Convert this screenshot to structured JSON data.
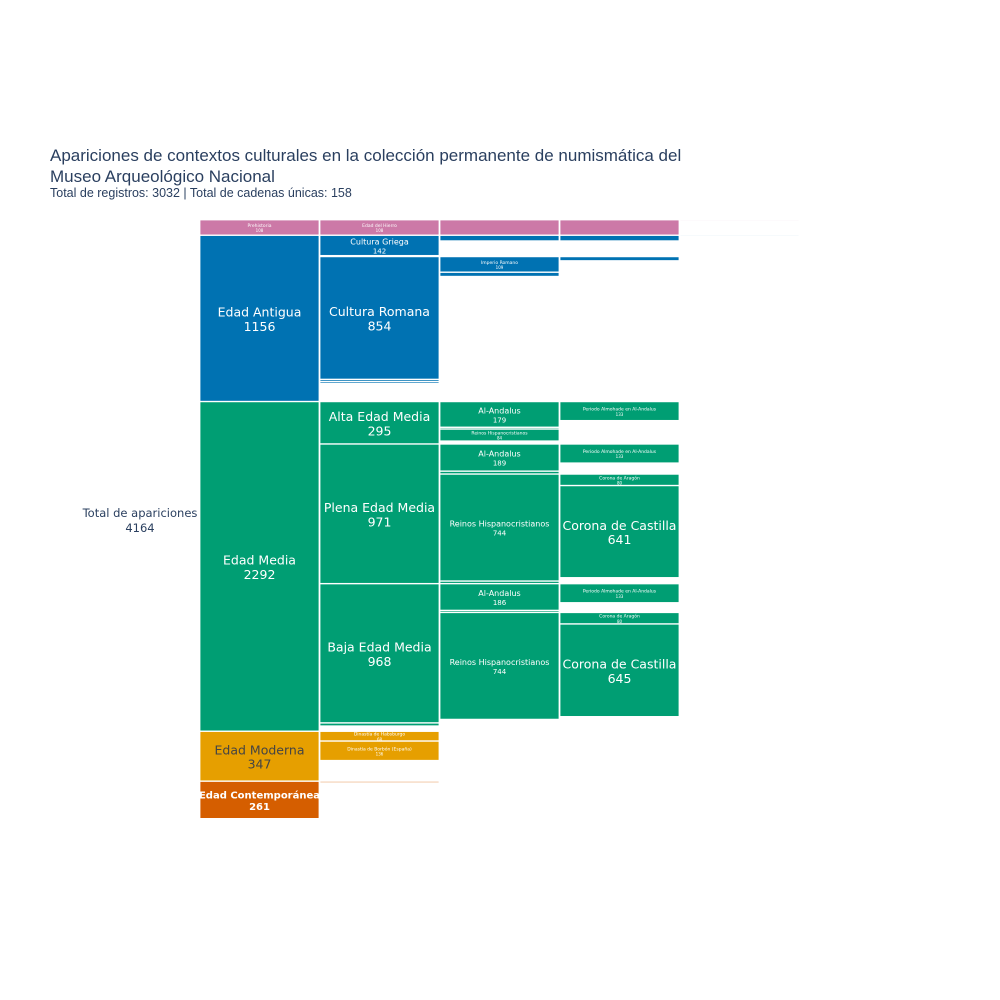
{
  "chart_data": {
    "type": "icicle",
    "title": "Apariciones de contextos culturales en la colección permanente de numismática del",
    "title_line2": "Museo Arqueológico Nacional",
    "subtitle": "Total de registros: 3032 | Total de cadenas únicas: 158",
    "root": {
      "label": "Total de apariciones",
      "value": 4164
    },
    "colors": {
      "prehistoria": "#cc79a7",
      "antigua": "#0072b2",
      "media": "#009e73",
      "moderna": "#e69f00",
      "contemporanea": "#d55e00"
    },
    "nodes": [
      {
        "id": "pre",
        "parent": "root",
        "label": "Prehistoria",
        "value": 108,
        "color": "prehistoria",
        "label_size": "tiny"
      },
      {
        "id": "ant",
        "parent": "root",
        "label": "Edad Antigua",
        "value": 1156,
        "color": "antigua",
        "label_size": "large"
      },
      {
        "id": "med",
        "parent": "root",
        "label": "Edad Media",
        "value": 2292,
        "color": "media",
        "label_size": "large"
      },
      {
        "id": "mod",
        "parent": "root",
        "label": "Edad Moderna",
        "value": 347,
        "color": "moderna",
        "label_size": "large",
        "text_color": "#444444"
      },
      {
        "id": "con",
        "parent": "root",
        "label": "Edad Contemporánea",
        "value": 261,
        "color": "contemporanea",
        "label_size": "medium",
        "bold": true
      },
      {
        "id": "pre-h",
        "parent": "pre",
        "label": "Edad del Hierro",
        "value": 108,
        "color": "prehistoria",
        "label_size": "tiny"
      },
      {
        "id": "pre-h-c",
        "parent": "pre-h",
        "label": "",
        "value": 108,
        "color": "prehistoria"
      },
      {
        "id": "pre-h-c-c",
        "parent": "pre-h-c",
        "label": "",
        "value": 108,
        "color": "prehistoria"
      },
      {
        "id": "pre-h-c-c-c",
        "parent": "pre-h-c-c",
        "label": "",
        "value": 10,
        "color": "prehistoria"
      },
      {
        "id": "ant-g",
        "parent": "ant",
        "label": "Cultura Griega",
        "value": 142,
        "color": "antigua",
        "label_size": "small"
      },
      {
        "id": "ant-g-a",
        "parent": "ant-g",
        "label": "",
        "value": 40,
        "color": "antigua"
      },
      {
        "id": "ant-g-a-a",
        "parent": "ant-g-a",
        "label": "",
        "value": 40,
        "color": "antigua"
      },
      {
        "id": "ant-g-a-a-a",
        "parent": "ant-g-a-a",
        "label": "",
        "value": 10,
        "color": "antigua"
      },
      {
        "id": "ant-gap1",
        "parent": "ant",
        "label": "",
        "value": 6,
        "color": "antigua"
      },
      {
        "id": "ant-r",
        "parent": "ant",
        "label": "Cultura Romana",
        "value": 854,
        "color": "antigua",
        "label_size": "large"
      },
      {
        "id": "ant-r-i",
        "parent": "ant-r",
        "label": "Imperio Romano",
        "value": 109,
        "color": "antigua",
        "label_size": "tiny"
      },
      {
        "id": "ant-r-i-x",
        "parent": "ant-r-i",
        "label": "",
        "value": 30,
        "color": "antigua"
      },
      {
        "id": "ant-r-x",
        "parent": "ant-r",
        "label": "",
        "value": 30,
        "color": "antigua"
      },
      {
        "id": "ant-o1",
        "parent": "ant",
        "label": "",
        "value": 15,
        "color": "antigua"
      },
      {
        "id": "ant-o2",
        "parent": "ant",
        "label": "",
        "value": 14,
        "color": "antigua"
      },
      {
        "id": "alta",
        "parent": "med",
        "label": "Alta Edad Media",
        "value": 295,
        "color": "media",
        "label_size": "large"
      },
      {
        "id": "alta-a",
        "parent": "alta",
        "label": "Al-Andalus",
        "value": 179,
        "color": "media",
        "label_size": "small"
      },
      {
        "id": "alta-a-p",
        "parent": "alta-a",
        "label": "Periodo Almohade en Al-Andalus",
        "value": 133,
        "color": "media",
        "label_size": "tiny"
      },
      {
        "id": "alta-x",
        "parent": "alta",
        "label": "",
        "value": 12,
        "color": "media"
      },
      {
        "id": "alta-r",
        "parent": "alta",
        "label": "Reinos Hispanocristianos",
        "value": 84,
        "color": "media",
        "label_size": "tiny"
      },
      {
        "id": "plena",
        "parent": "med",
        "label": "Plena Edad Media",
        "value": 971,
        "color": "media",
        "label_size": "large"
      },
      {
        "id": "plena-a",
        "parent": "plena",
        "label": "Al-Andalus",
        "value": 189,
        "color": "media",
        "label_size": "small"
      },
      {
        "id": "plena-a-p",
        "parent": "plena-a",
        "label": "Periodo Almohade en Al-Andalus",
        "value": 133,
        "color": "media",
        "label_size": "tiny"
      },
      {
        "id": "plena-x",
        "parent": "plena",
        "label": "",
        "value": 20,
        "color": "media"
      },
      {
        "id": "plena-r",
        "parent": "plena",
        "label": "Reinos Hispanocristianos",
        "value": 744,
        "color": "media",
        "label_size": "small"
      },
      {
        "id": "plena-r-l",
        "parent": "plena-r",
        "label": "Corona de Aragón",
        "value": 80,
        "color": "media",
        "label_size": "tiny"
      },
      {
        "id": "plena-r-c",
        "parent": "plena-r",
        "label": "Corona de Castilla",
        "value": 641,
        "color": "media",
        "label_size": "large"
      },
      {
        "id": "plena-y",
        "parent": "plena",
        "label": "",
        "value": 18,
        "color": "media"
      },
      {
        "id": "baja",
        "parent": "med",
        "label": "Baja Edad Media",
        "value": 968,
        "color": "media",
        "label_size": "large"
      },
      {
        "id": "baja-a",
        "parent": "baja",
        "label": "Al-Andalus",
        "value": 186,
        "color": "media",
        "label_size": "small"
      },
      {
        "id": "baja-a-p",
        "parent": "baja-a",
        "label": "Periodo Almohade en Al-Andalus",
        "value": 133,
        "color": "media",
        "label_size": "tiny"
      },
      {
        "id": "baja-x",
        "parent": "baja",
        "label": "",
        "value": 14,
        "color": "media"
      },
      {
        "id": "baja-r",
        "parent": "baja",
        "label": "Reinos Hispanocristianos",
        "value": 744,
        "color": "media",
        "label_size": "small"
      },
      {
        "id": "baja-r-l",
        "parent": "baja-r",
        "label": "Corona de Aragón",
        "value": 80,
        "color": "media",
        "label_size": "tiny"
      },
      {
        "id": "baja-r-c",
        "parent": "baja-r",
        "label": "Corona de Castilla",
        "value": 645,
        "color": "media",
        "label_size": "large"
      },
      {
        "id": "baja-y",
        "parent": "baja",
        "label": "",
        "value": 8,
        "color": "media"
      },
      {
        "id": "med-z",
        "parent": "med",
        "label": "",
        "value": 22,
        "color": "media"
      },
      {
        "id": "mod-h",
        "parent": "mod",
        "label": "Dinastía de Habsburgo",
        "value": 68,
        "color": "moderna",
        "label_size": "tiny"
      },
      {
        "id": "mod-b",
        "parent": "mod",
        "label": "Dinastía de Borbón (España)",
        "value": 136,
        "color": "moderna",
        "label_size": "tiny"
      },
      {
        "id": "con-x",
        "parent": "con",
        "label": "",
        "value": 12,
        "color": "contemporanea"
      }
    ]
  }
}
